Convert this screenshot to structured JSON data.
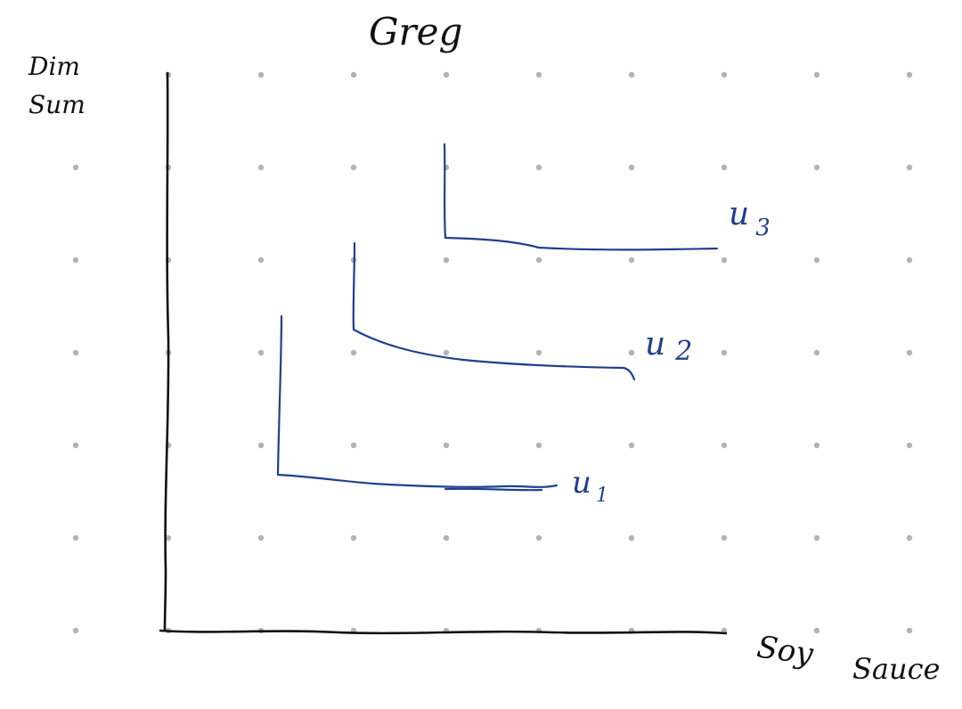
{
  "title": "Greg",
  "y_axis_label_line1": "Dim",
  "y_axis_label_line2": "Sum",
  "x_axis_label_line1": "Soy",
  "x_axis_label_line2": "Sauce",
  "curves": [
    {
      "label_letter": "u",
      "label_subscript": "1"
    },
    {
      "label_letter": "u",
      "label_subscript": "2"
    },
    {
      "label_letter": "u",
      "label_subscript": "3"
    }
  ],
  "colors": {
    "axis_ink": "#111111",
    "curve_ink": "#1f3f8f",
    "grid_dot": "#b3b3b3",
    "background": "#ffffff"
  }
}
